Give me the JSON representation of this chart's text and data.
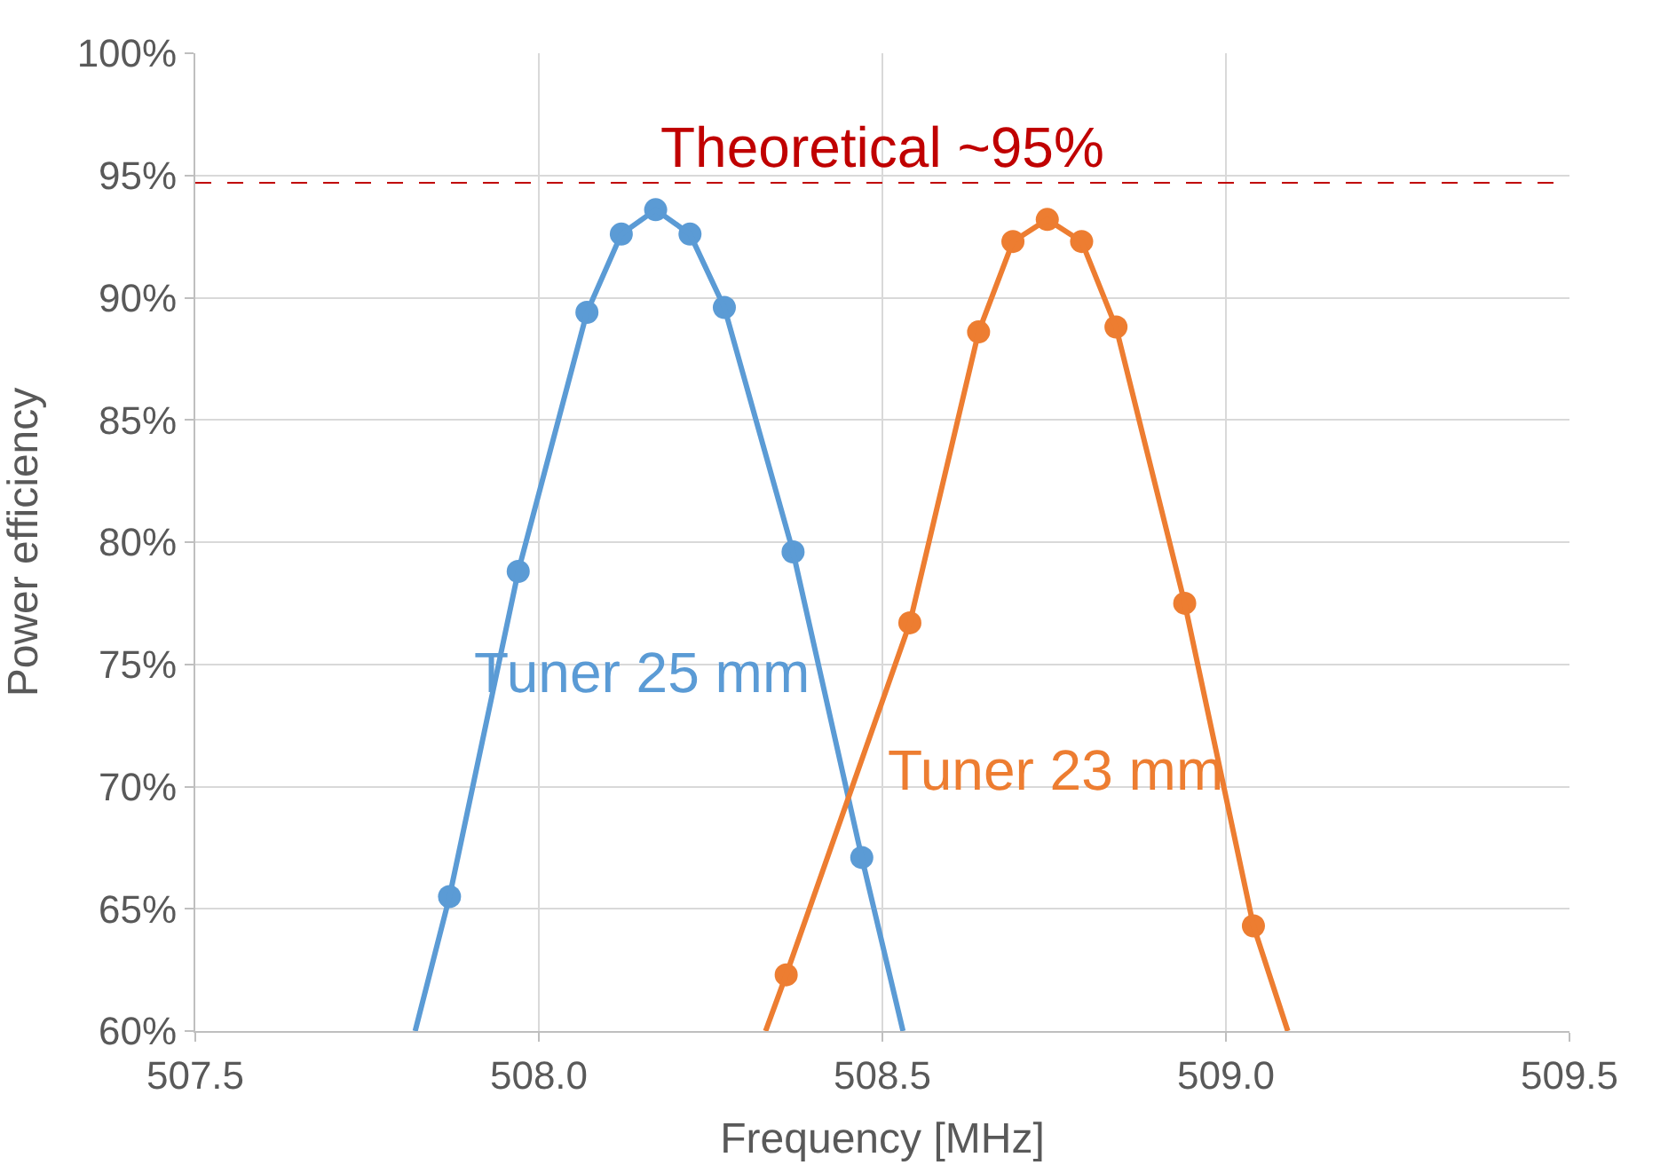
{
  "chart_data": {
    "type": "scatter",
    "xlabel": "Frequency [MHz]",
    "ylabel": "Power efficiency",
    "xlim": [
      507.5,
      509.5
    ],
    "xticks": [
      {
        "value": 507.5,
        "label": "507.5"
      },
      {
        "value": 508.0,
        "label": "508.0"
      },
      {
        "value": 508.5,
        "label": "508.5"
      },
      {
        "value": 509.0,
        "label": "509.0"
      },
      {
        "value": 509.5,
        "label": "509.5"
      }
    ],
    "ylim": [
      60,
      100
    ],
    "yticks": [
      {
        "value": 60,
        "label": "60%"
      },
      {
        "value": 65,
        "label": "65%"
      },
      {
        "value": 70,
        "label": "70%"
      },
      {
        "value": 75,
        "label": "75%"
      },
      {
        "value": 80,
        "label": "80%"
      },
      {
        "value": 85,
        "label": "85%"
      },
      {
        "value": 90,
        "label": "90%"
      },
      {
        "value": 95,
        "label": "95%"
      },
      {
        "value": 100,
        "label": "100%"
      }
    ],
    "grid": true,
    "legend": false,
    "marker": "circle",
    "series": [
      {
        "name": "Tuner 25 mm",
        "color": "#5b9bd5",
        "x": [
          507.87,
          507.97,
          508.07,
          508.12,
          508.17,
          508.22,
          508.27,
          508.37,
          508.47
        ],
        "values": [
          65.5,
          78.8,
          89.4,
          92.6,
          93.6,
          92.6,
          89.6,
          79.6,
          67.1
        ]
      },
      {
        "type": "line",
        "marker": "none",
        "color": "#5b9bd5",
        "x": [
          507.82,
          507.87,
          507.97,
          508.07,
          508.12,
          508.17,
          508.22,
          508.27,
          508.37,
          508.47,
          508.53
        ],
        "values": [
          60,
          65.5,
          78.8,
          89.4,
          92.6,
          93.6,
          92.6,
          89.6,
          79.6,
          67.1,
          60
        ]
      },
      {
        "name": "Tuner 23 mm",
        "color": "#ed7d31",
        "x": [
          508.36,
          508.54,
          508.64,
          508.69,
          508.74,
          508.79,
          508.84,
          508.94,
          509.04
        ],
        "values": [
          62.3,
          76.7,
          88.6,
          92.3,
          93.2,
          92.3,
          88.8,
          77.5,
          64.3
        ]
      },
      {
        "type": "line",
        "marker": "none",
        "color": "#ed7d31",
        "x": [
          508.33,
          508.36,
          508.54,
          508.64,
          508.69,
          508.74,
          508.79,
          508.84,
          508.94,
          509.04,
          509.09
        ],
        "values": [
          60,
          62.3,
          76.7,
          88.6,
          92.3,
          93.2,
          92.3,
          88.8,
          77.5,
          64.3,
          60
        ]
      }
    ],
    "ref_lines": [
      {
        "axis": "y",
        "value": 94.7,
        "label": "Theoretical ~95%",
        "color": "#c00000",
        "line_style": "dashed"
      }
    ]
  }
}
